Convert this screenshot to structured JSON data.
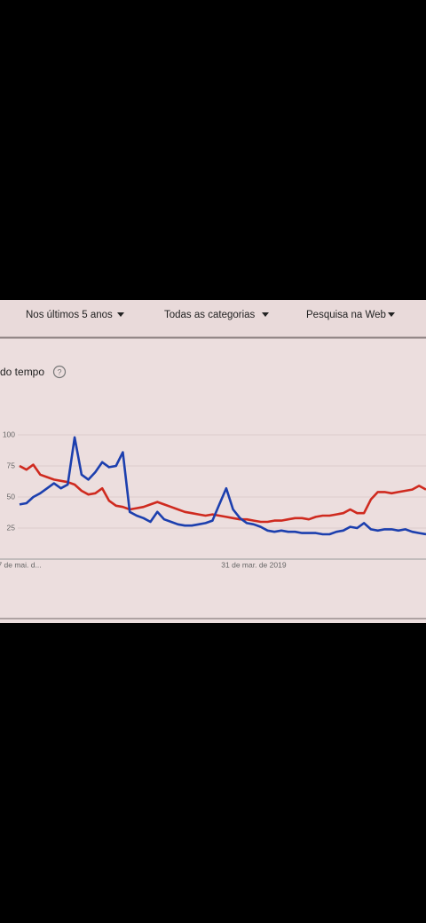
{
  "filters": [
    "Nos últimos 5 anos",
    "Todas as categorias",
    "Pesquisa na Web"
  ],
  "chart_data": {
    "type": "line",
    "title": "do tempo",
    "categories": [
      "7 de mai. d...",
      null,
      null,
      null,
      null,
      null,
      null,
      null,
      null,
      null,
      null,
      null,
      null,
      null,
      null,
      null,
      null,
      null,
      null,
      null,
      null,
      null,
      null,
      null,
      null,
      null,
      null,
      null,
      null,
      null,
      null,
      null,
      null,
      null,
      "31 de mar. de 2019",
      null,
      null,
      null,
      null,
      null,
      null,
      null,
      null,
      null,
      null,
      null,
      null,
      null,
      null,
      null,
      null,
      null,
      null,
      null,
      null,
      null,
      null,
      null,
      null,
      null
    ],
    "series": [
      {
        "color": "#1c3fae",
        "values": [
          44,
          45,
          50,
          53,
          57,
          61,
          57,
          60,
          98,
          68,
          64,
          70,
          78,
          74,
          75,
          86,
          38,
          35,
          33,
          30,
          38,
          32,
          30,
          28,
          27,
          27,
          28,
          29,
          31,
          44,
          57,
          40,
          33,
          29,
          28,
          26,
          23,
          22,
          23,
          22,
          22,
          21,
          21,
          21,
          20,
          20,
          22,
          23,
          26,
          25,
          29,
          24,
          23,
          24,
          24,
          23,
          24,
          22,
          21,
          20
        ]
      },
      {
        "color": "#cf2a1f",
        "values": [
          75,
          72,
          76,
          68,
          66,
          64,
          63,
          62,
          60,
          55,
          52,
          53,
          57,
          47,
          43,
          42,
          40,
          41,
          42,
          44,
          46,
          44,
          42,
          40,
          38,
          37,
          36,
          35,
          36,
          35,
          34,
          33,
          32,
          32,
          31,
          30,
          30,
          31,
          31,
          32,
          33,
          33,
          32,
          34,
          35,
          35,
          36,
          37,
          40,
          37,
          37,
          48,
          54,
          54,
          53,
          54,
          55,
          56,
          59,
          56
        ]
      }
    ],
    "ylim": [
      0,
      100
    ],
    "yticks": [
      25,
      50,
      75,
      100
    ],
    "grid": true
  }
}
